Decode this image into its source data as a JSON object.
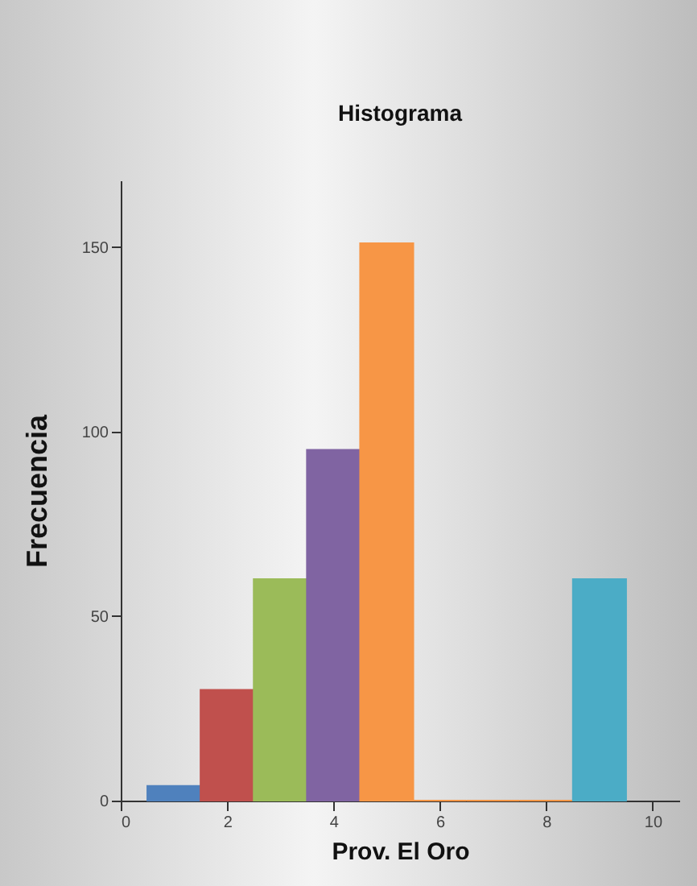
{
  "chart_data": {
    "type": "histogram",
    "title": "Histograma",
    "xlabel": "Prov. El Oro",
    "ylabel": "Frecuencia",
    "bins": [
      0.5,
      1.5,
      2.5,
      3.5,
      4.5,
      5.5,
      6.5,
      7.5,
      8.5,
      9.5
    ],
    "values": [
      4,
      30,
      60,
      95,
      151,
      0,
      0,
      0,
      60
    ],
    "colors": [
      "#4f81bd",
      "#c0504d",
      "#9bbb59",
      "#8064a2",
      "#f79646",
      "#f79646",
      "#f79646",
      "#f79646",
      "#4bacc6"
    ],
    "xlim": [
      0,
      10.5
    ],
    "xticks": [
      0,
      2,
      4,
      6,
      8,
      10
    ],
    "ylim": [
      0,
      168
    ],
    "yticks": [
      0,
      50,
      100,
      150
    ],
    "grid": false
  }
}
